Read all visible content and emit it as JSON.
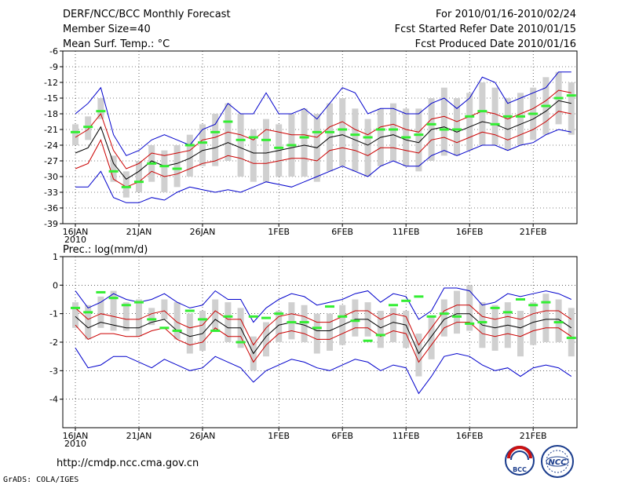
{
  "header": {
    "left": [
      "DERF/NCC/BCC Monthly Forecast",
      "Member Size=40",
      "Mean Surf. Temp.: °C"
    ],
    "right": [
      "For 2010/01/16-2010/02/24",
      "Fcst Started Refer Date 2010/01/15",
      "Fcst Produced Date 2010/01/16"
    ]
  },
  "footer": {
    "url": "http://cmdp.ncc.cma.gov.cn",
    "credit": "GrADS: COLA/IGES",
    "logo_bcc_text": "BCC",
    "logo_ncc_text": "NCC"
  },
  "colors": {
    "envelope": "#0000cc",
    "spread": "#cc0000",
    "mean": "#000000",
    "obs": "#33ee33",
    "bar": "#d0d0d0"
  },
  "chart_data": [
    {
      "type": "line",
      "title": "Mean Surf. Temp.: °C",
      "ylim": [
        -39,
        -6
      ],
      "yticks": [
        -6,
        -9,
        -12,
        -15,
        -18,
        -21,
        -24,
        -27,
        -30,
        -33,
        -36,
        -39
      ],
      "xtick_labels": [
        "16JAN",
        "21JAN",
        "26JAN",
        "1FEB",
        "6FEB",
        "11FEB",
        "16FEB",
        "21FEB"
      ],
      "xtick_sublabel": "2010",
      "x_days": 40,
      "series": [
        {
          "name": "ensemble max",
          "color": "#0000cc",
          "values": [
            -18,
            -16,
            -13,
            -22,
            -26,
            -25,
            -23,
            -22,
            -23,
            -24,
            -21,
            -20,
            -16,
            -18,
            -18,
            -14,
            -18,
            -18,
            -17,
            -19,
            -16,
            -13,
            -14,
            -18,
            -17,
            -17,
            -18,
            -18,
            -16,
            -15,
            -17,
            -15,
            -11,
            -12,
            -16,
            -15,
            -14,
            -13,
            -10,
            -10
          ]
        },
        {
          "name": "ensemble mean + sd",
          "color": "#cc0000",
          "values": [
            -22.5,
            -21,
            -18,
            -25,
            -28.5,
            -27.5,
            -25.5,
            -26,
            -25.5,
            -25,
            -23,
            -22.5,
            -21.5,
            -22,
            -23,
            -21,
            -21.5,
            -22,
            -22,
            -22.5,
            -20.5,
            -19.5,
            -21,
            -22,
            -20.5,
            -20,
            -21,
            -21.5,
            -19,
            -18.5,
            -19.5,
            -18.5,
            -17.5,
            -18,
            -19,
            -18,
            -17,
            -15.5,
            -13.5,
            -14
          ]
        },
        {
          "name": "ensemble mean",
          "color": "#000000",
          "values": [
            -25.5,
            -24.5,
            -20.5,
            -27.5,
            -30.5,
            -29,
            -27,
            -28,
            -27.5,
            -26.5,
            -25,
            -24.5,
            -23.5,
            -24.5,
            -25.5,
            -25.5,
            -25,
            -24.5,
            -24,
            -24.5,
            -22.5,
            -22,
            -23,
            -24,
            -22.5,
            -22,
            -23,
            -23.5,
            -21,
            -20.5,
            -21.5,
            -20.5,
            -19.5,
            -20,
            -21,
            -20,
            -19,
            -17.5,
            -15.5,
            -16
          ]
        },
        {
          "name": "ensemble mean - sd",
          "color": "#cc0000",
          "values": [
            -28.5,
            -27.5,
            -23,
            -30.5,
            -32,
            -31,
            -29,
            -30,
            -29.5,
            -28.5,
            -27.5,
            -27,
            -26,
            -26.5,
            -27.5,
            -27.5,
            -27,
            -26.5,
            -26.5,
            -27,
            -25,
            -24.5,
            -25,
            -26,
            -24.5,
            -24.5,
            -25,
            -25.5,
            -23,
            -22.5,
            -23.5,
            -22.5,
            -21.5,
            -22,
            -23,
            -22,
            -21,
            -19.5,
            -17.5,
            -18
          ]
        },
        {
          "name": "ensemble min",
          "color": "#0000cc",
          "values": [
            -32,
            -32,
            -29,
            -34,
            -35,
            -35,
            -34,
            -34.5,
            -33,
            -32,
            -32.5,
            -33,
            -32.5,
            -33,
            -32,
            -31,
            -31.5,
            -32,
            -31,
            -30,
            -29,
            -28,
            -29,
            -30,
            -28,
            -27,
            -28,
            -28,
            -26,
            -25,
            -26,
            -25,
            -24,
            -24,
            -25,
            -24,
            -23.5,
            -22,
            -21,
            -21.5
          ]
        }
      ],
      "bars": [
        [
          -24,
          -20
        ],
        [
          -23,
          -18.5
        ],
        [
          -19,
          -15
        ],
        [
          -31,
          -26
        ],
        [
          -34,
          -29
        ],
        [
          -33,
          -27
        ],
        [
          -31,
          -24
        ],
        [
          -33,
          -25
        ],
        [
          -32,
          -24
        ],
        [
          -30,
          -22
        ],
        [
          -28,
          -20
        ],
        [
          -28,
          -18
        ],
        [
          -27,
          -16
        ],
        [
          -30,
          -18
        ],
        [
          -31,
          -21
        ],
        [
          -31,
          -19
        ],
        [
          -30,
          -20
        ],
        [
          -30,
          -18
        ],
        [
          -30,
          -17
        ],
        [
          -31,
          -18
        ],
        [
          -29,
          -16
        ],
        [
          -28,
          -15
        ],
        [
          -29,
          -17
        ],
        [
          -30,
          -19
        ],
        [
          -28,
          -17
        ],
        [
          -27,
          -16
        ],
        [
          -28,
          -17
        ],
        [
          -29,
          -17
        ],
        [
          -27,
          -15
        ],
        [
          -26,
          -13
        ],
        [
          -26,
          -15
        ],
        [
          -25,
          -14
        ],
        [
          -24,
          -12
        ],
        [
          -24,
          -13
        ],
        [
          -25,
          -15
        ],
        [
          -24,
          -14
        ],
        [
          -23,
          -13
        ],
        [
          -22,
          -11
        ],
        [
          -20,
          -10
        ],
        [
          -22,
          -12
        ]
      ],
      "obs": [
        -21.5,
        -20.5,
        -17.5,
        -29,
        -32,
        -31,
        -27.5,
        -28,
        -28.5,
        -24,
        -23.5,
        -21.5,
        -19.5,
        -23,
        -22.5,
        -23,
        -24.5,
        -24,
        -22.5,
        -21.5,
        -21.5,
        -21,
        -22,
        -22.5,
        -21,
        -21,
        -22.5,
        -22,
        -20,
        -21,
        -21,
        -18.5,
        -17.5,
        -20,
        -18.5,
        -18.5,
        -18,
        -16.5,
        -15,
        -14.5
      ]
    },
    {
      "type": "line",
      "title": "Prec.: log(mm/d)",
      "ylim": [
        -5,
        1
      ],
      "yticks": [
        1,
        0,
        -1,
        -2,
        -3,
        -4
      ],
      "xtick_labels": [
        "16JAN",
        "21JAN",
        "26JAN",
        "1FEB",
        "6FEB",
        "11FEB",
        "16FEB",
        "21FEB"
      ],
      "xtick_sublabel": "2010",
      "x_days": 40,
      "series": [
        {
          "name": "ensemble max",
          "color": "#0000cc",
          "values": [
            -0.2,
            -0.8,
            -0.6,
            -0.3,
            -0.5,
            -0.6,
            -0.5,
            -0.3,
            -0.6,
            -0.8,
            -0.7,
            -0.2,
            -0.5,
            -0.5,
            -1.3,
            -0.8,
            -0.5,
            -0.3,
            -0.4,
            -0.7,
            -0.6,
            -0.5,
            -0.3,
            -0.2,
            -0.6,
            -0.3,
            -0.4,
            -1.2,
            -0.9,
            -0.1,
            -0.1,
            -0.2,
            -0.7,
            -0.6,
            -0.3,
            -0.4,
            -0.3,
            -0.2,
            -0.3,
            -0.5
          ]
        },
        {
          "name": "ensemble mean + sd",
          "color": "#cc0000",
          "values": [
            -0.8,
            -1.2,
            -1.0,
            -1.1,
            -1.2,
            -1.2,
            -1.0,
            -0.9,
            -1.3,
            -1.5,
            -1.4,
            -0.9,
            -1.2,
            -1.2,
            -2.1,
            -1.5,
            -1.1,
            -1.0,
            -1.1,
            -1.3,
            -1.3,
            -1.1,
            -0.9,
            -0.9,
            -1.2,
            -1.0,
            -1.1,
            -2.1,
            -1.5,
            -0.9,
            -0.7,
            -0.7,
            -1.1,
            -1.2,
            -1.1,
            -1.2,
            -1.0,
            -0.9,
            -0.9,
            -1.2
          ]
        },
        {
          "name": "ensemble mean",
          "color": "#000000",
          "values": [
            -1.1,
            -1.5,
            -1.3,
            -1.4,
            -1.5,
            -1.5,
            -1.3,
            -1.2,
            -1.6,
            -1.8,
            -1.7,
            -1.2,
            -1.5,
            -1.5,
            -2.4,
            -1.8,
            -1.4,
            -1.3,
            -1.4,
            -1.6,
            -1.6,
            -1.4,
            -1.2,
            -1.2,
            -1.5,
            -1.3,
            -1.4,
            -2.4,
            -1.8,
            -1.2,
            -1.0,
            -1.0,
            -1.4,
            -1.5,
            -1.4,
            -1.5,
            -1.3,
            -1.2,
            -1.2,
            -1.5
          ]
        },
        {
          "name": "ensemble mean - sd",
          "color": "#cc0000",
          "values": [
            -1.4,
            -1.9,
            -1.7,
            -1.7,
            -1.8,
            -1.8,
            -1.6,
            -1.5,
            -1.9,
            -2.1,
            -2.0,
            -1.5,
            -1.8,
            -1.8,
            -2.7,
            -2.1,
            -1.7,
            -1.6,
            -1.7,
            -1.9,
            -1.9,
            -1.7,
            -1.5,
            -1.5,
            -1.8,
            -1.6,
            -1.7,
            -2.7,
            -2.1,
            -1.5,
            -1.3,
            -1.3,
            -1.7,
            -1.8,
            -1.7,
            -1.8,
            -1.6,
            -1.5,
            -1.5,
            -1.8
          ]
        },
        {
          "name": "ensemble min",
          "color": "#0000cc",
          "values": [
            -2.2,
            -2.9,
            -2.8,
            -2.5,
            -2.5,
            -2.7,
            -2.9,
            -2.6,
            -2.8,
            -3.0,
            -2.9,
            -2.5,
            -2.7,
            -2.9,
            -3.4,
            -3.0,
            -2.8,
            -2.6,
            -2.7,
            -2.9,
            -3.0,
            -2.8,
            -2.6,
            -2.7,
            -3.0,
            -2.8,
            -2.9,
            -3.8,
            -3.2,
            -2.5,
            -2.4,
            -2.5,
            -2.8,
            -3.0,
            -2.9,
            -3.2,
            -2.9,
            -2.8,
            -2.9,
            -3.2
          ]
        }
      ],
      "bars": [
        [
          -1.5,
          -0.6
        ],
        [
          -1.9,
          -0.7
        ],
        [
          -1.5,
          -0.4
        ],
        [
          -1.6,
          -0.2
        ],
        [
          -1.6,
          -0.6
        ],
        [
          -1.8,
          -0.5
        ],
        [
          -1.4,
          -0.8
        ],
        [
          -1.2,
          -0.5
        ],
        [
          -1.9,
          -0.6
        ],
        [
          -2.4,
          -1.0
        ],
        [
          -2.3,
          -0.9
        ],
        [
          -1.6,
          -0.5
        ],
        [
          -2.0,
          -0.6
        ],
        [
          -2.2,
          -0.8
        ],
        [
          -3.0,
          -1.8
        ],
        [
          -2.5,
          -1.3
        ],
        [
          -2.0,
          -0.9
        ],
        [
          -1.9,
          -0.6
        ],
        [
          -2.0,
          -0.7
        ],
        [
          -2.4,
          -1.0
        ],
        [
          -2.3,
          -1.0
        ],
        [
          -2.1,
          -0.7
        ],
        [
          -1.8,
          -0.5
        ],
        [
          -1.8,
          -0.6
        ],
        [
          -2.2,
          -0.9
        ],
        [
          -2.0,
          -0.8
        ],
        [
          -2.2,
          -0.9
        ],
        [
          -3.2,
          -1.7
        ],
        [
          -2.6,
          -1.1
        ],
        [
          -1.8,
          -0.5
        ],
        [
          -1.7,
          -0.2
        ],
        [
          -1.6,
          0.0
        ],
        [
          -2.2,
          -0.6
        ],
        [
          -2.3,
          -0.7
        ],
        [
          -2.2,
          -0.6
        ],
        [
          -2.5,
          -0.9
        ],
        [
          -2.1,
          -0.6
        ],
        [
          -2.0,
          -0.3
        ],
        [
          -2.0,
          -0.5
        ],
        [
          -2.5,
          -0.8
        ]
      ],
      "obs": [
        -0.8,
        -0.95,
        -0.25,
        -0.45,
        -0.7,
        -0.6,
        -1.2,
        -1.5,
        -1.6,
        -0.9,
        -1.2,
        -1.6,
        -1.1,
        -2.0,
        -1.1,
        -1.15,
        -1.0,
        -1.3,
        -1.3,
        -1.5,
        -0.75,
        -1.1,
        -1.25,
        -1.95,
        -1.75,
        -0.7,
        -0.55,
        -0.4,
        -1.1,
        -1.0,
        -1.1,
        -1.35,
        -1.3,
        -0.8,
        -0.95,
        -0.5,
        -0.7,
        -0.6,
        -1.3,
        -1.85
      ]
    }
  ]
}
